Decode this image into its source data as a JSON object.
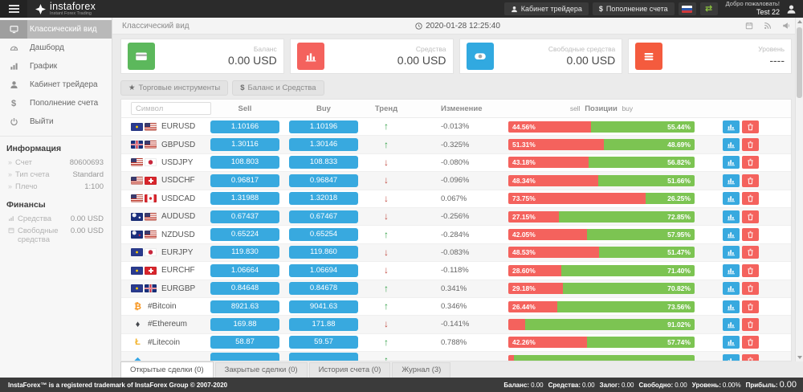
{
  "colors": {
    "accent_blue": "#38a9df",
    "sell_red": "#f4625d",
    "buy_green": "#7cc452",
    "trend_up": "#2f9e44",
    "trend_down": "#c14b42",
    "swap_green": "#8dc63f",
    "header_bg": "#2b2b2b",
    "footer_bg": "#3b3b3b"
  },
  "header": {
    "logo_text": "instaforex",
    "logo_tagline": "Instant Forex Trading",
    "trader_cabinet_button": "Кабинет трейдера",
    "deposit_button": "Пополнение счета",
    "welcome_text": "Добро пожаловать!",
    "username": "Test 22"
  },
  "sidebar": {
    "items": [
      {
        "id": "classic-view",
        "icon": "classic-view",
        "label": "Классический вид",
        "active": true
      },
      {
        "id": "dashboard",
        "icon": "dashboard",
        "label": "Дашборд",
        "active": false
      },
      {
        "id": "chart",
        "icon": "chart",
        "label": "График",
        "active": false
      },
      {
        "id": "trader-cabinet",
        "icon": "person",
        "label": "Кабинет трейдера",
        "active": false
      },
      {
        "id": "deposit",
        "icon": "dollar",
        "label": "Пополнение счета",
        "active": false
      },
      {
        "id": "logout",
        "icon": "power",
        "label": "Выйти",
        "active": false
      }
    ],
    "info_title": "Информация",
    "info_rows": [
      {
        "label": "Счет",
        "value": "80600693"
      },
      {
        "label": "Тип счета",
        "value": "Standard"
      },
      {
        "label": "Плечо",
        "value": "1:100"
      }
    ],
    "finance_title": "Финансы",
    "finance_rows": [
      {
        "icon": "equity",
        "label": "Средства",
        "value": "0.00 USD"
      },
      {
        "icon": "free-margin",
        "label": "Свободные средства",
        "value": "0.00 USD"
      }
    ]
  },
  "topbar": {
    "title": "Классический вид",
    "datetime": "2020-01-28 12:25:40"
  },
  "cards": [
    {
      "id": "balance",
      "icon": "credit-card",
      "color": "#5cb85c",
      "label": "Баланс",
      "value": "0.00 USD"
    },
    {
      "id": "equity",
      "icon": "bar-chart",
      "color": "#f4625d",
      "label": "Средства",
      "value": "0.00 USD"
    },
    {
      "id": "free-margin",
      "icon": "money",
      "color": "#31a9e0",
      "label": "Свободные средства",
      "value": "0.00 USD"
    },
    {
      "id": "level",
      "icon": "list",
      "color": "#f45b3e",
      "label": "Уровень",
      "value": "----"
    }
  ],
  "toolbar": {
    "instruments_button": "Торговые инструменты",
    "balance_button": "Баланс и Средства"
  },
  "table": {
    "search_placeholder": "Символ",
    "headers": {
      "sell": "Sell",
      "buy": "Buy",
      "trend": "Тренд",
      "change": "Изменение",
      "positions_sell": "sell",
      "positions": "Позиции",
      "positions_buy": "buy"
    },
    "rows": [
      {
        "symbol": "EURUSD",
        "flags": [
          "eu",
          "us"
        ],
        "sell": "1.10166",
        "buy": "1.10196",
        "trend": "up",
        "change": "-0.013%",
        "sell_pct": 44.56,
        "buy_pct": 55.44,
        "sell_label": "44.56%",
        "buy_label": "55.44%"
      },
      {
        "symbol": "GBPUSD",
        "flags": [
          "gb",
          "us"
        ],
        "sell": "1.30116",
        "buy": "1.30146",
        "trend": "up",
        "change": "-0.325%",
        "sell_pct": 51.31,
        "buy_pct": 48.69,
        "sell_label": "51.31%",
        "buy_label": "48.69%"
      },
      {
        "symbol": "USDJPY",
        "flags": [
          "us",
          "jp"
        ],
        "sell": "108.803",
        "buy": "108.833",
        "trend": "down",
        "change": "-0.080%",
        "sell_pct": 43.18,
        "buy_pct": 56.82,
        "sell_label": "43.18%",
        "buy_label": "56.82%"
      },
      {
        "symbol": "USDCHF",
        "flags": [
          "us",
          "ch"
        ],
        "sell": "0.96817",
        "buy": "0.96847",
        "trend": "down",
        "change": "-0.096%",
        "sell_pct": 48.34,
        "buy_pct": 51.66,
        "sell_label": "48.34%",
        "buy_label": "51.66%"
      },
      {
        "symbol": "USDCAD",
        "flags": [
          "us",
          "ca"
        ],
        "sell": "1.31988",
        "buy": "1.32018",
        "trend": "down",
        "change": "0.067%",
        "sell_pct": 73.75,
        "buy_pct": 26.25,
        "sell_label": "73.75%",
        "buy_label": "26.25%"
      },
      {
        "symbol": "AUDUSD",
        "flags": [
          "au",
          "us"
        ],
        "sell": "0.67437",
        "buy": "0.67467",
        "trend": "down",
        "change": "-0.256%",
        "sell_pct": 27.15,
        "buy_pct": 72.85,
        "sell_label": "27.15%",
        "buy_label": "72.85%"
      },
      {
        "symbol": "NZDUSD",
        "flags": [
          "nz",
          "us"
        ],
        "sell": "0.65224",
        "buy": "0.65254",
        "trend": "up",
        "change": "-0.284%",
        "sell_pct": 42.05,
        "buy_pct": 57.95,
        "sell_label": "42.05%",
        "buy_label": "57.95%"
      },
      {
        "symbol": "EURJPY",
        "flags": [
          "eu",
          "jp"
        ],
        "sell": "119.830",
        "buy": "119.860",
        "trend": "down",
        "change": "-0.083%",
        "sell_pct": 48.53,
        "buy_pct": 51.47,
        "sell_label": "48.53%",
        "buy_label": "51.47%"
      },
      {
        "symbol": "EURCHF",
        "flags": [
          "eu",
          "ch"
        ],
        "sell": "1.06664",
        "buy": "1.06694",
        "trend": "down",
        "change": "-0.118%",
        "sell_pct": 28.6,
        "buy_pct": 71.4,
        "sell_label": "28.60%",
        "buy_label": "71.40%"
      },
      {
        "symbol": "EURGBP",
        "flags": [
          "eu",
          "gb"
        ],
        "sell": "0.84648",
        "buy": "0.84678",
        "trend": "up",
        "change": "0.341%",
        "sell_pct": 29.18,
        "buy_pct": 70.82,
        "sell_label": "29.18%",
        "buy_label": "70.82%"
      },
      {
        "symbol": "#Bitcoin",
        "crypto_glyph": "₿",
        "crypto_color": "#f7931a",
        "sell": "8921.63",
        "buy": "9041.63",
        "trend": "up",
        "change": "0.346%",
        "sell_pct": 26.44,
        "buy_pct": 73.56,
        "sell_label": "26.44%",
        "buy_label": "73.56%"
      },
      {
        "symbol": "#Ethereum",
        "crypto_glyph": "♦",
        "crypto_color": "#45484d",
        "sell": "169.88",
        "buy": "171.88",
        "trend": "down",
        "change": "-0.141%",
        "sell_pct": 8.98,
        "buy_pct": 91.02,
        "sell_label": "",
        "buy_label": "91.02%"
      },
      {
        "symbol": "#Litecoin",
        "crypto_glyph": "Ł",
        "crypto_color": "#f2b32c",
        "sell": "58.87",
        "buy": "59.57",
        "trend": "up",
        "change": "0.788%",
        "sell_pct": 42.26,
        "buy_pct": 57.74,
        "sell_label": "42.26%",
        "buy_label": "57.74%"
      },
      {
        "symbol": "",
        "crypto_glyph": "◆",
        "crypto_color": "#35a6e5",
        "sell": "",
        "buy": "",
        "trend": "up",
        "change": "",
        "sell_pct": 3,
        "buy_pct": 97,
        "sell_label": "",
        "buy_label": ""
      }
    ]
  },
  "tabs": [
    {
      "label": "Открытые сделки (0)",
      "active": true
    },
    {
      "label": "Закрытые сделки (0)",
      "active": false
    },
    {
      "label": "История счета (0)",
      "active": false
    },
    {
      "label": "Журнал (3)",
      "active": false
    }
  ],
  "footer": {
    "trademark": "InstaForex™ is a registered trademark of InstaForex Group © 2007-2020",
    "stats": [
      {
        "label": "Баланс:",
        "value": "0.00",
        "big": false
      },
      {
        "label": "Средства:",
        "value": "0.00",
        "big": false
      },
      {
        "label": "Залог:",
        "value": "0.00",
        "big": false
      },
      {
        "label": "Свободно:",
        "value": "0.00",
        "big": false
      },
      {
        "label": "Уровень:",
        "value": "0.00%",
        "big": false
      },
      {
        "label": "Прибыль:",
        "value": "0.00",
        "big": true
      }
    ]
  }
}
